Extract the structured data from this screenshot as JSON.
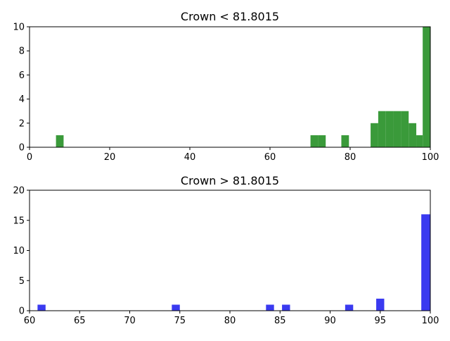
{
  "chart_data": [
    {
      "type": "bar",
      "title": "Crown < 81.8015",
      "color": "#3a9a3a",
      "xlim": [
        0,
        100
      ],
      "ylim": [
        0,
        10
      ],
      "xticks": [
        0,
        20,
        40,
        60,
        80,
        100
      ],
      "yticks": [
        0,
        2,
        4,
        6,
        8,
        10
      ],
      "bins": [
        {
          "x0": 6.6,
          "x1": 8.5,
          "count": 1
        },
        {
          "x0": 70.1,
          "x1": 72.0,
          "count": 1
        },
        {
          "x0": 72.0,
          "x1": 73.9,
          "count": 1
        },
        {
          "x0": 77.8,
          "x1": 79.7,
          "count": 1
        },
        {
          "x0": 85.1,
          "x1": 87.0,
          "count": 2
        },
        {
          "x0": 87.0,
          "x1": 88.9,
          "count": 3
        },
        {
          "x0": 88.9,
          "x1": 90.8,
          "count": 3
        },
        {
          "x0": 90.8,
          "x1": 92.7,
          "count": 3
        },
        {
          "x0": 92.7,
          "x1": 94.6,
          "count": 3
        },
        {
          "x0": 94.6,
          "x1": 96.5,
          "count": 2
        },
        {
          "x0": 96.5,
          "x1": 98.1,
          "count": 1
        },
        {
          "x0": 98.1,
          "x1": 100.0,
          "count": 10
        }
      ]
    },
    {
      "type": "bar",
      "title": "Crown > 81.8015",
      "color": "#3a3af0",
      "xlim": [
        60,
        100
      ],
      "ylim": [
        0,
        20
      ],
      "xticks": [
        60,
        65,
        70,
        75,
        80,
        85,
        90,
        95,
        100
      ],
      "yticks": [
        0,
        5,
        10,
        15,
        20
      ],
      "bins": [
        {
          "x0": 60.8,
          "x1": 61.6,
          "count": 1
        },
        {
          "x0": 74.2,
          "x1": 75.0,
          "count": 1
        },
        {
          "x0": 83.6,
          "x1": 84.4,
          "count": 1
        },
        {
          "x0": 85.2,
          "x1": 86.0,
          "count": 1
        },
        {
          "x0": 91.5,
          "x1": 92.3,
          "count": 1
        },
        {
          "x0": 94.6,
          "x1": 95.4,
          "count": 2
        },
        {
          "x0": 99.1,
          "x1": 100.0,
          "count": 16
        }
      ]
    }
  ]
}
